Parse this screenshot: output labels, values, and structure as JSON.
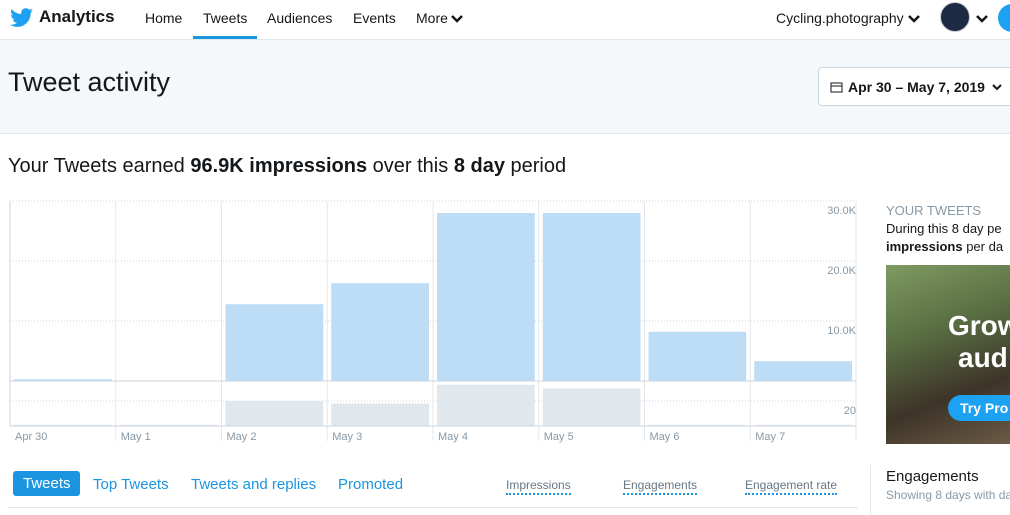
{
  "nav": {
    "brand": "Analytics",
    "links": [
      "Home",
      "Tweets",
      "Audiences",
      "Events",
      "More"
    ],
    "account": "Cycling.photography"
  },
  "header": {
    "title": "Tweet activity",
    "date_range": "Apr 30 – May 7, 2019"
  },
  "summary": [
    "Your Tweets earned ",
    "96.9K impressions",
    " over this ",
    "8 day",
    " period"
  ],
  "chart_data": [
    {
      "type": "bar",
      "categories": [
        "Apr 30",
        "May 1",
        "May 2",
        "May 3",
        "May 4",
        "May 5",
        "May 6",
        "May 7"
      ],
      "values": [
        300,
        100,
        12800,
        16300,
        28000,
        28000,
        8200,
        3300
      ],
      "color": "#bddcf5",
      "ylim": [
        0,
        30000
      ],
      "yticks": [
        {
          "value": 10000,
          "label": "10.0K"
        },
        {
          "value": 20000,
          "label": "20.0K"
        },
        {
          "value": 30000,
          "label": "30.0K"
        }
      ],
      "grid": true
    },
    {
      "type": "bar",
      "values": [
        1,
        1,
        20,
        18,
        33,
        30,
        1,
        1
      ],
      "color": "#e1e8ed",
      "ylim": [
        0,
        36
      ],
      "yticks": [
        20
      ],
      "grid": true
    }
  ],
  "side": {
    "label": "YOUR TWEETS",
    "line1": "During this 8 day pe",
    "line2_bold": "impressions",
    "line2": " per da",
    "promo": [
      "Grow",
      "aud"
    ],
    "promo_button": "Try Pro"
  },
  "tabs": [
    "Tweets",
    "Top Tweets",
    "Tweets and replies",
    "Promoted"
  ],
  "columns": [
    "Impressions",
    "Engagements",
    "Engagement rate"
  ],
  "engagements": {
    "title": "Engagements",
    "note": "Showing 8 days with da"
  }
}
